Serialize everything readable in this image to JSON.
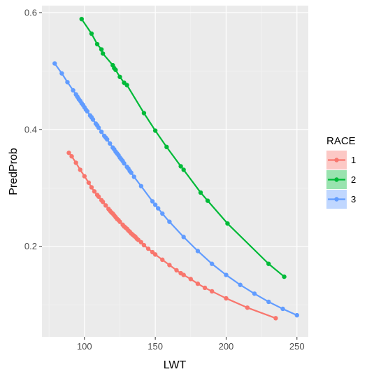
{
  "chart_data": {
    "type": "line",
    "xlabel": "LWT",
    "ylabel": "PredProb",
    "xlim": [
      70,
      258
    ],
    "ylim": [
      0.045,
      0.612
    ],
    "x_ticks": [
      100,
      150,
      200,
      250
    ],
    "y_ticks": [
      0.2,
      0.4,
      0.6
    ],
    "x_tick_labels": [
      "100",
      "150",
      "200",
      "250"
    ],
    "y_tick_labels": [
      "0.2",
      "0.4",
      "0.6"
    ],
    "grid": true,
    "legend": {
      "title": "RACE",
      "placement": "right"
    },
    "series": [
      {
        "name": "1",
        "color": "#F8766D",
        "x": [
          89,
          91,
          94,
          97,
          100,
          103,
          105,
          107,
          109,
          110,
          112,
          113,
          115,
          117,
          118,
          119,
          120,
          121,
          122,
          123,
          124,
          125,
          127,
          128,
          129,
          130,
          131,
          132,
          133,
          134,
          135,
          136,
          137,
          138,
          140,
          142,
          145,
          148,
          150,
          155,
          160,
          165,
          168,
          170,
          175,
          180,
          185,
          190,
          200,
          215,
          235
        ],
        "y": [
          0.36,
          0.354,
          0.343,
          0.331,
          0.32,
          0.309,
          0.301,
          0.294,
          0.288,
          0.285,
          0.279,
          0.276,
          0.27,
          0.264,
          0.261,
          0.258,
          0.256,
          0.253,
          0.25,
          0.247,
          0.245,
          0.242,
          0.237,
          0.234,
          0.232,
          0.23,
          0.227,
          0.225,
          0.222,
          0.22,
          0.218,
          0.216,
          0.213,
          0.211,
          0.207,
          0.202,
          0.196,
          0.19,
          0.186,
          0.177,
          0.168,
          0.159,
          0.154,
          0.151,
          0.144,
          0.136,
          0.129,
          0.123,
          0.111,
          0.095,
          0.077
        ]
      },
      {
        "name": "2",
        "color": "#00BA38",
        "x": [
          98,
          105,
          109,
          112,
          113,
          120,
          121,
          122,
          125,
          128,
          130,
          142,
          150,
          158,
          168,
          170,
          182,
          187,
          201,
          230,
          241
        ],
        "y": [
          0.589,
          0.564,
          0.546,
          0.537,
          0.53,
          0.51,
          0.505,
          0.502,
          0.49,
          0.48,
          0.476,
          0.428,
          0.398,
          0.37,
          0.337,
          0.331,
          0.292,
          0.278,
          0.239,
          0.17,
          0.148
        ]
      },
      {
        "name": "3",
        "color": "#619CFF",
        "x": [
          79,
          84,
          88,
          92,
          94,
          95,
          96,
          97,
          98,
          99,
          100,
          101,
          102,
          104,
          105,
          106,
          108,
          109,
          110,
          112,
          114,
          115,
          116,
          118,
          120,
          121,
          122,
          123,
          124,
          125,
          126,
          127,
          128,
          130,
          131,
          132,
          133,
          135,
          140,
          148,
          150,
          152,
          155,
          160,
          170,
          180,
          190,
          200,
          210,
          220,
          230,
          240,
          250
        ],
        "y": [
          0.513,
          0.496,
          0.481,
          0.467,
          0.46,
          0.456,
          0.452,
          0.449,
          0.445,
          0.442,
          0.438,
          0.434,
          0.431,
          0.424,
          0.421,
          0.417,
          0.41,
          0.407,
          0.403,
          0.396,
          0.389,
          0.386,
          0.383,
          0.376,
          0.369,
          0.366,
          0.362,
          0.359,
          0.356,
          0.352,
          0.349,
          0.346,
          0.342,
          0.336,
          0.333,
          0.329,
          0.326,
          0.319,
          0.303,
          0.277,
          0.271,
          0.265,
          0.256,
          0.242,
          0.216,
          0.192,
          0.17,
          0.151,
          0.134,
          0.119,
          0.105,
          0.093,
          0.082
        ]
      }
    ]
  }
}
